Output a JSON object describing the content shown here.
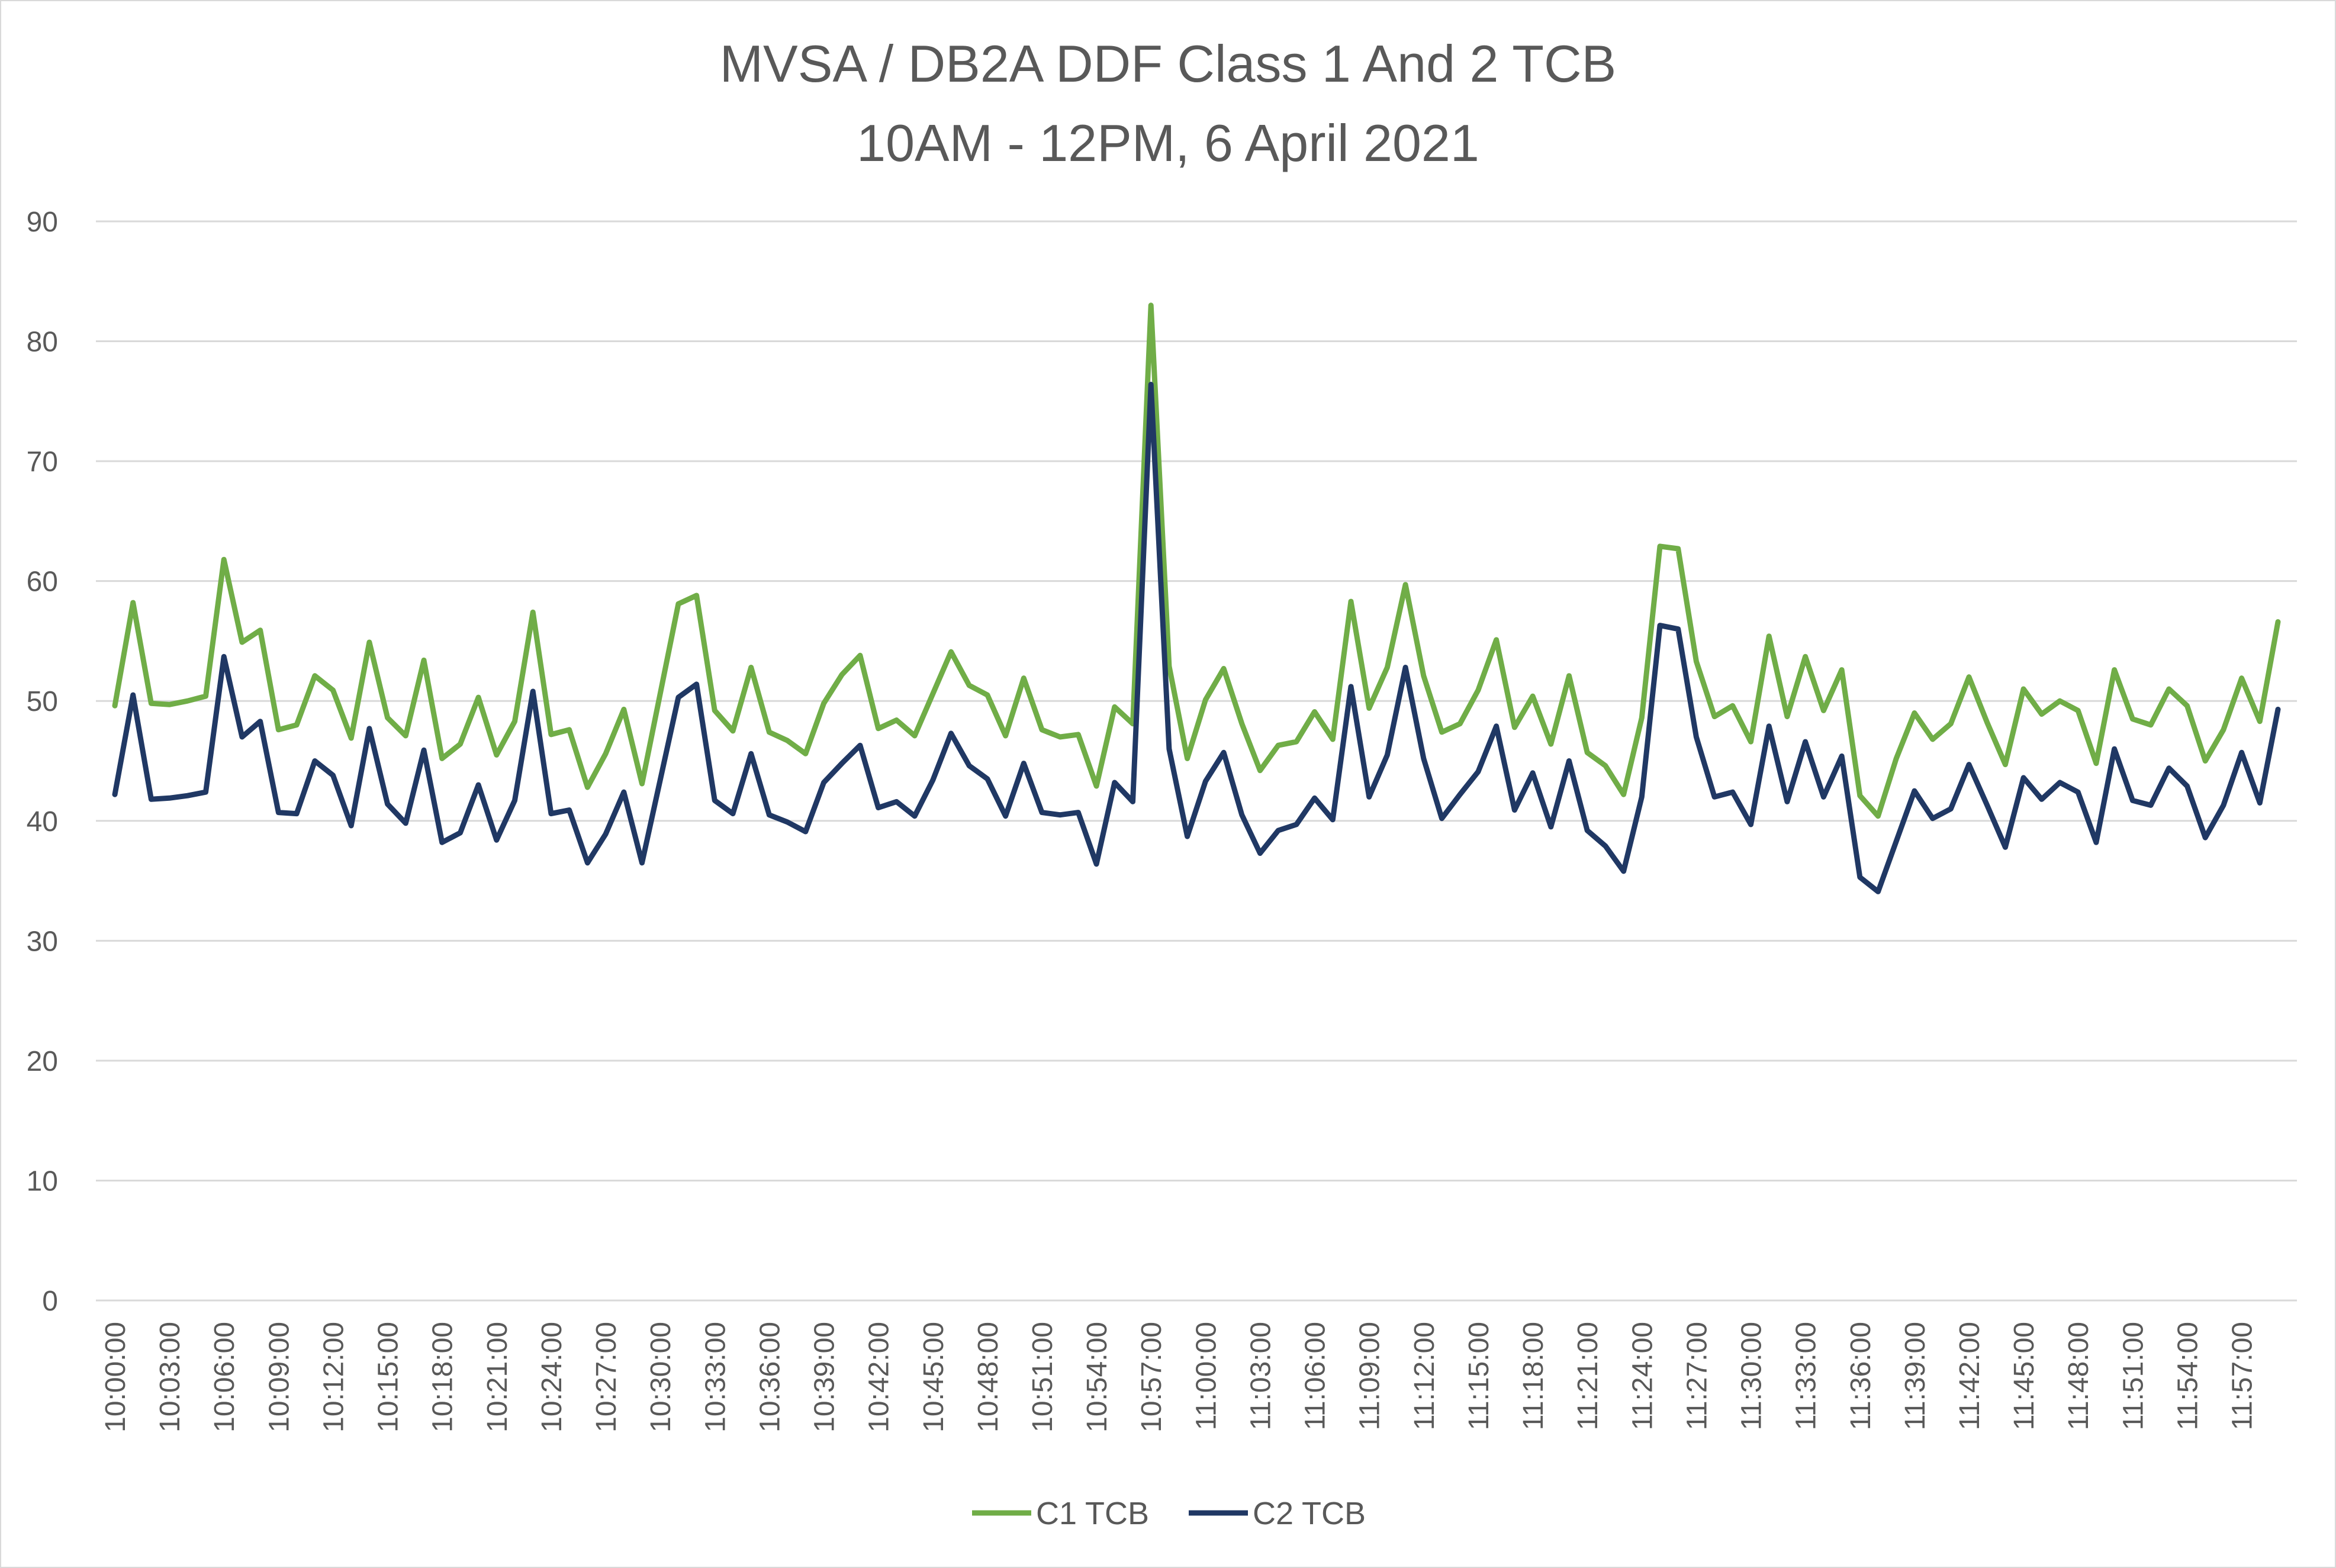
{
  "chart_data": {
    "type": "line",
    "title": "MVSA / DB2A DDF Class 1 And 2 TCB",
    "subtitle": "10AM - 12PM, 6 April 2021",
    "xlabel": "",
    "ylabel": "",
    "ylim": [
      0,
      90
    ],
    "yticks": [
      0,
      10,
      20,
      30,
      40,
      50,
      60,
      70,
      80,
      90
    ],
    "grid": true,
    "legend": "bottom",
    "x_tick_labels": [
      "10:00:00",
      "10:03:00",
      "10:06:00",
      "10:09:00",
      "10:12:00",
      "10:15:00",
      "10:18:00",
      "10:21:00",
      "10:24:00",
      "10:27:00",
      "10:30:00",
      "10:33:00",
      "10:36:00",
      "10:39:00",
      "10:42:00",
      "10:45:00",
      "10:48:00",
      "10:51:00",
      "10:54:00",
      "10:57:00",
      "11:00:00",
      "11:03:00",
      "11:06:00",
      "11:09:00",
      "11:12:00",
      "11:15:00",
      "11:18:00",
      "11:21:00",
      "11:24:00",
      "11:27:00",
      "11:30:00",
      "11:33:00",
      "11:36:00",
      "11:39:00",
      "11:42:00",
      "11:45:00",
      "11:48:00",
      "11:51:00",
      "11:54:00",
      "11:57:00"
    ],
    "x_tick_every": 3,
    "series": [
      {
        "name": "C1 TCB",
        "color": "#70ad47",
        "values": [
          49.6,
          58.2,
          49.8,
          49.7,
          50.0,
          50.4,
          61.8,
          54.9,
          55.9,
          47.6,
          48.0,
          52.1,
          50.9,
          46.9,
          54.9,
          48.6,
          47.1,
          53.4,
          45.2,
          46.4,
          50.3,
          45.5,
          48.3,
          57.4,
          47.2,
          47.6,
          42.8,
          45.6,
          49.3,
          43.1,
          50.6,
          58.1,
          58.8,
          49.2,
          47.5,
          52.8,
          47.4,
          46.7,
          45.6,
          49.8,
          52.2,
          53.8,
          47.7,
          48.4,
          47.1,
          50.6,
          54.1,
          51.3,
          50.5,
          47.1,
          51.9,
          47.6,
          47.0,
          47.2,
          42.9,
          49.5,
          48.1,
          83.0,
          52.9,
          45.2,
          50.1,
          52.7,
          48.1,
          44.2,
          46.3,
          46.6,
          49.1,
          46.8,
          58.3,
          49.4,
          52.8,
          59.7,
          52.1,
          47.4,
          48.1,
          50.9,
          55.1,
          47.8,
          50.4,
          46.4,
          52.1,
          45.7,
          44.6,
          42.2,
          48.6,
          62.9,
          62.7,
          53.3,
          48.7,
          49.6,
          46.6,
          55.4,
          48.7,
          53.7,
          49.2,
          52.6,
          42.1,
          40.4,
          45.2,
          49.0,
          46.8,
          48.1,
          52.0,
          48.2,
          44.7,
          51.0,
          48.9,
          50.0,
          49.2,
          44.8,
          52.6,
          48.5,
          48.0,
          51.0,
          49.6,
          45.0,
          47.6,
          51.9,
          48.3,
          56.6
        ]
      },
      {
        "name": "C2 TCB",
        "color": "#203864",
        "values": [
          42.2,
          50.5,
          41.8,
          41.9,
          42.1,
          42.4,
          53.7,
          47.0,
          48.3,
          40.7,
          40.6,
          45.0,
          43.8,
          39.6,
          47.7,
          41.4,
          39.8,
          45.9,
          38.2,
          39.0,
          43.0,
          38.4,
          41.7,
          50.8,
          40.6,
          40.9,
          36.5,
          38.9,
          42.4,
          36.5,
          43.4,
          50.3,
          51.4,
          41.7,
          40.6,
          45.6,
          40.5,
          39.9,
          39.1,
          43.2,
          44.8,
          46.3,
          41.1,
          41.6,
          40.4,
          43.4,
          47.3,
          44.6,
          43.5,
          40.4,
          44.8,
          40.7,
          40.5,
          40.7,
          36.4,
          43.2,
          41.6,
          76.4,
          46.0,
          38.7,
          43.3,
          45.7,
          40.5,
          37.3,
          39.2,
          39.7,
          41.9,
          40.1,
          51.2,
          42.0,
          45.5,
          52.8,
          45.2,
          40.2,
          42.2,
          44.1,
          47.9,
          40.9,
          44.0,
          39.5,
          45.0,
          39.2,
          37.9,
          35.8,
          42.0,
          56.3,
          56.0,
          47.0,
          42.0,
          42.4,
          39.7,
          47.9,
          41.6,
          46.6,
          42.0,
          45.4,
          35.3,
          34.1,
          38.3,
          42.5,
          40.2,
          41.0,
          44.7,
          41.3,
          37.8,
          43.6,
          41.8,
          43.2,
          42.4,
          38.2,
          46.0,
          41.7,
          41.3,
          44.4,
          42.9,
          38.6,
          41.3,
          45.7,
          41.5,
          49.3
        ]
      }
    ]
  }
}
